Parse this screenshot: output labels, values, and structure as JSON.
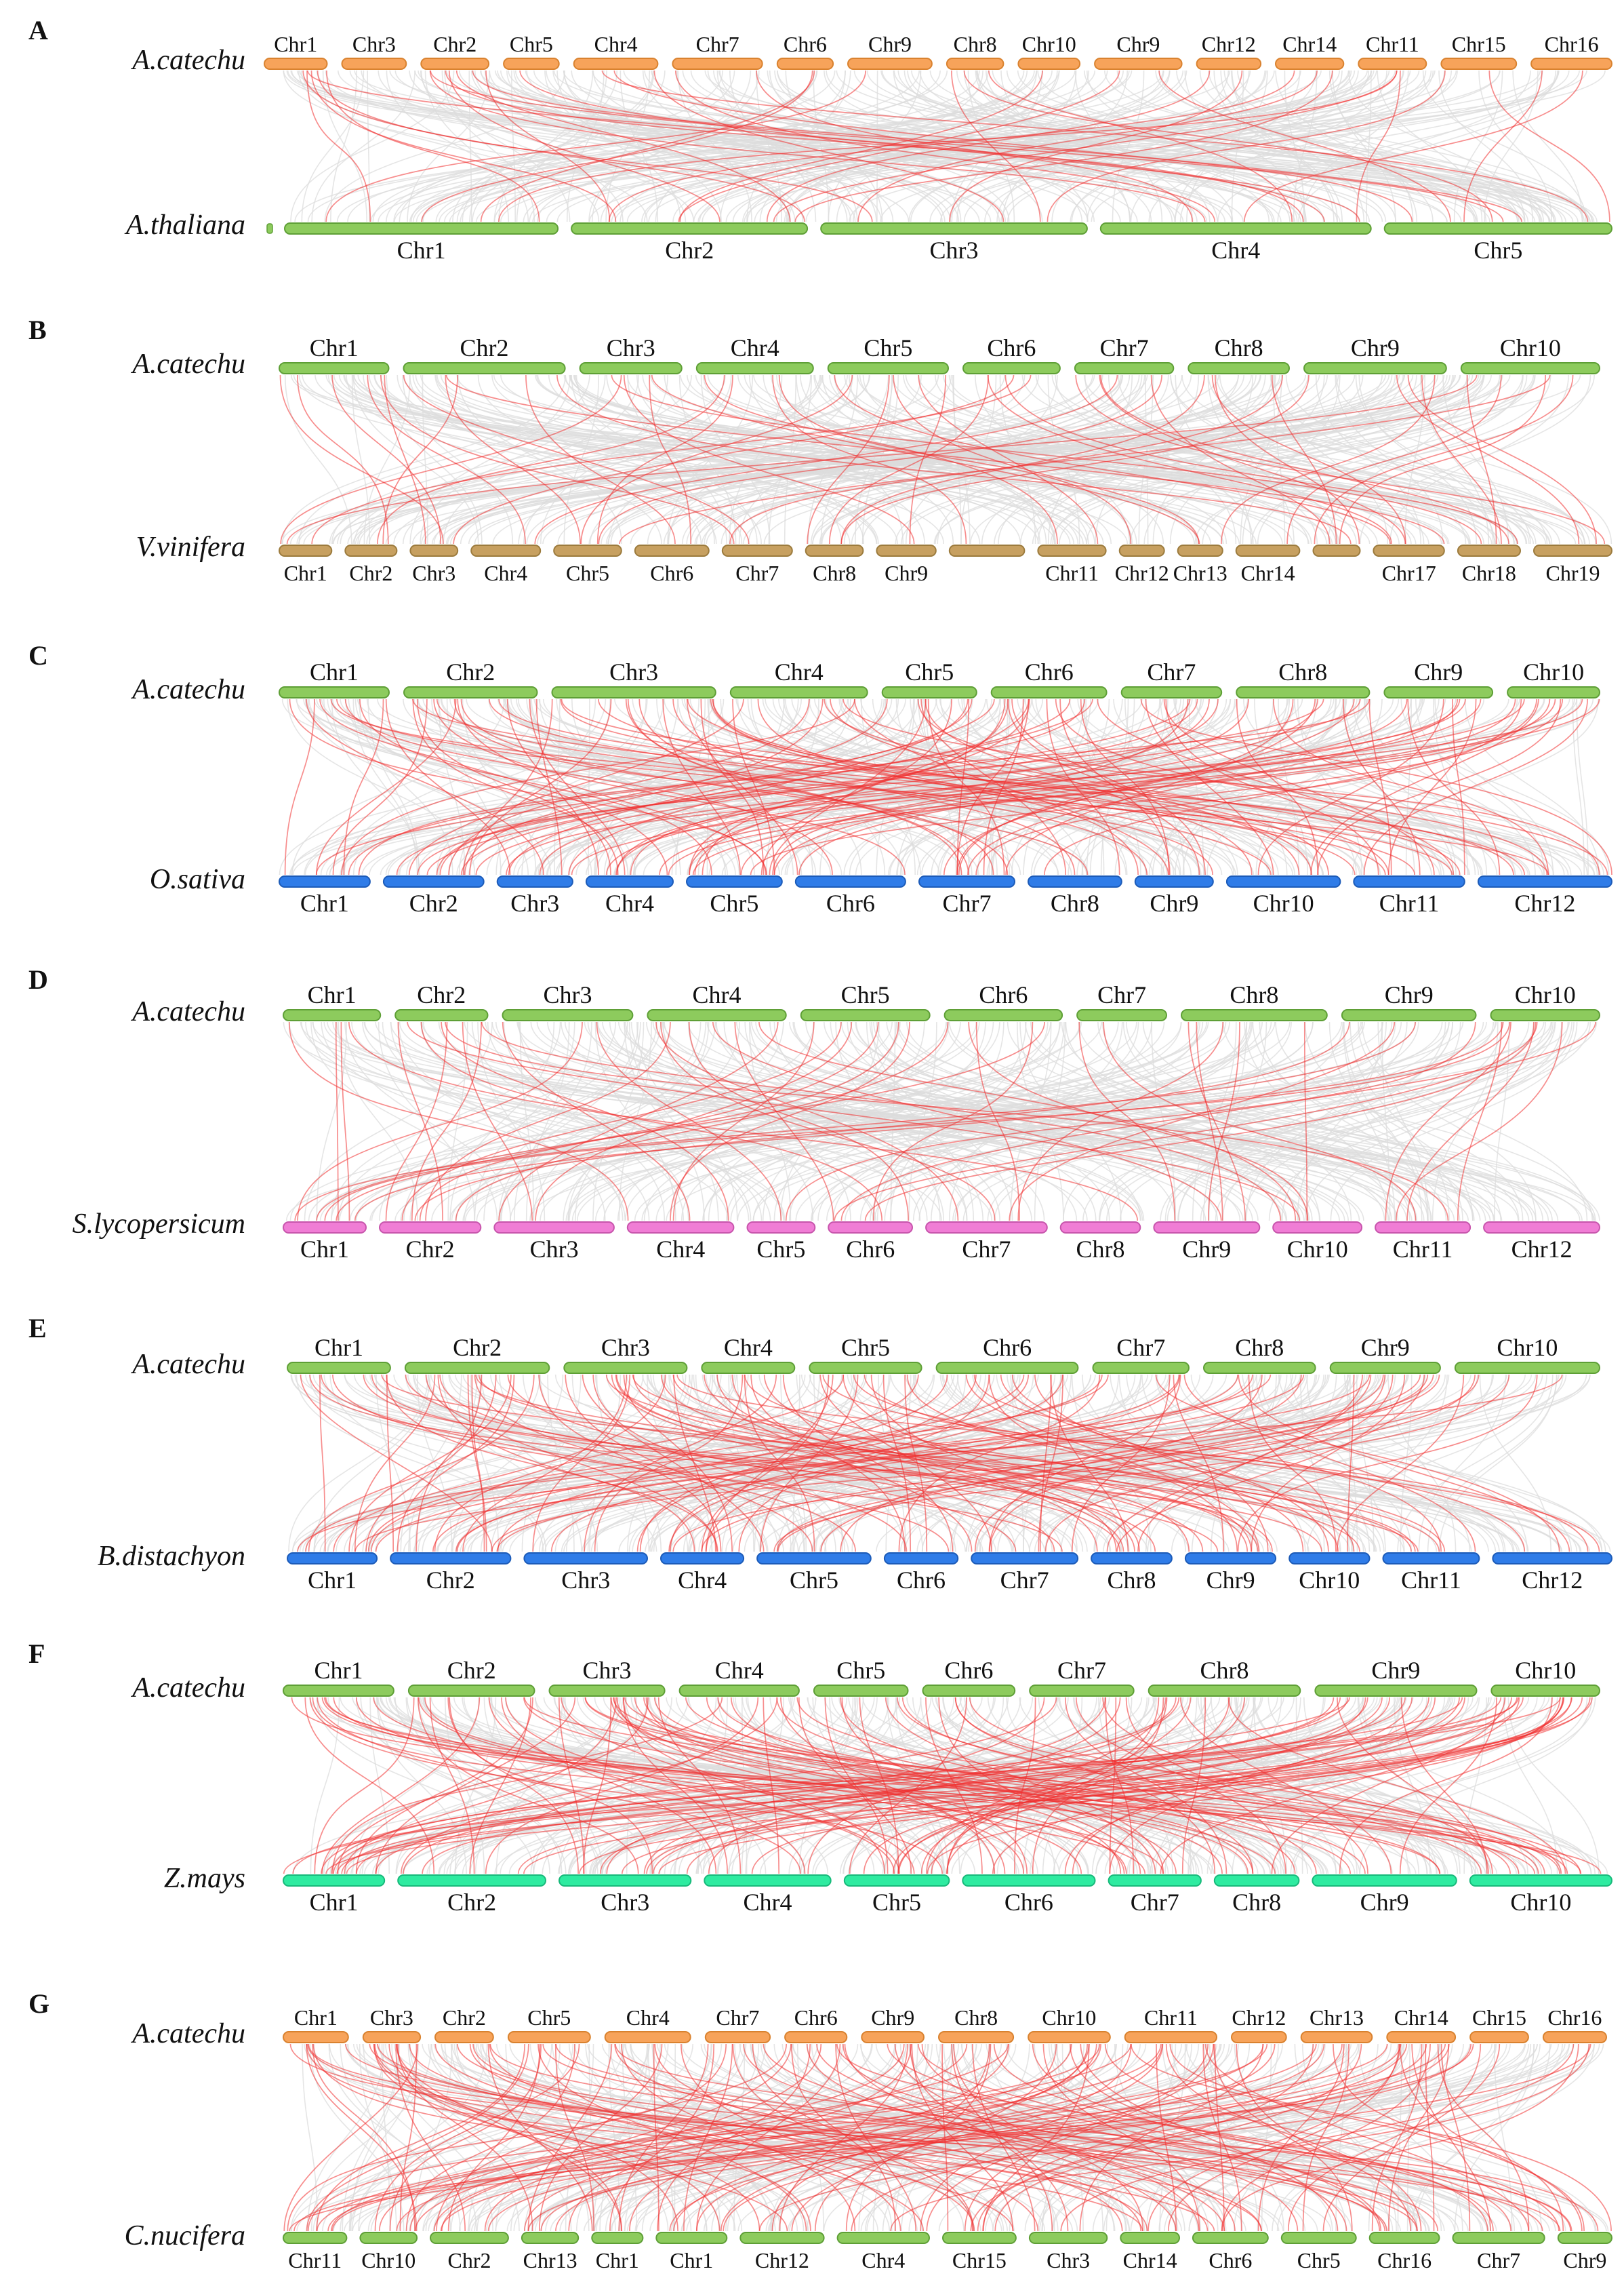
{
  "colors": {
    "orange": "#F7A35A",
    "orange_stroke": "#D9822F",
    "green": "#8DCB5D",
    "green_stroke": "#5E9F36",
    "tan": "#C7A060",
    "tan_stroke": "#9C7B3D",
    "blue": "#2F7CE8",
    "blue_stroke": "#1C5BB8",
    "pink": "#F07DD5",
    "pink_stroke": "#C755AC",
    "teal": "#2EEBA0",
    "teal_stroke": "#17B97A",
    "background_link": "#DCDCDC",
    "syntenic_link": "#F03030"
  },
  "panels": [
    {
      "letter": "A",
      "top_species": "A.catechu",
      "bottom_species": "A.thaliana",
      "top_color": "orange",
      "bottom_color": "green",
      "top_chr": [
        "Chr1",
        "Chr3",
        "Chr2",
        "Chr5",
        "Chr4",
        "Chr7",
        "Chr6",
        "Chr9",
        "Chr8",
        "Chr10",
        "Chr9",
        "Chr12",
        "Chr14",
        "Chr11",
        "Chr15",
        "Chr16"
      ],
      "bottom_chr": [
        "Chr1",
        "Chr2",
        "Chr3",
        "Chr4",
        "Chr5"
      ],
      "link_density": 40
    },
    {
      "letter": "B",
      "top_species": "A.catechu",
      "bottom_species": "V.vinifera",
      "top_color": "green",
      "bottom_color": "tan",
      "top_chr": [
        "Chr1",
        "Chr2",
        "Chr3",
        "Chr4",
        "Chr5",
        "Chr6",
        "Chr7",
        "Chr8",
        "Chr9",
        "Chr10"
      ],
      "bottom_chr": [
        "Chr1",
        "Chr2",
        "Chr3",
        "Chr4",
        "Chr5",
        "Chr6",
        "Chr7",
        "Chr8",
        "Chr9",
        "",
        "Chr11",
        "Chr12",
        "Chr13",
        "Chr14",
        "",
        "Chr17",
        "Chr18",
        "Chr19"
      ],
      "link_density": 55
    },
    {
      "letter": "C",
      "top_species": "A.catechu",
      "bottom_species": "O.sativa",
      "top_color": "green",
      "bottom_color": "blue",
      "top_chr": [
        "Chr1",
        "Chr2",
        "Chr3",
        "Chr4",
        "Chr5",
        "Chr6",
        "Chr7",
        "Chr8",
        "Chr9",
        "Chr10"
      ],
      "bottom_chr": [
        "Chr1",
        "Chr2",
        "Chr3",
        "Chr4",
        "Chr5",
        "Chr6",
        "Chr7",
        "Chr8",
        "Chr9",
        "Chr10",
        "Chr11",
        "Chr12"
      ],
      "link_density": 120
    },
    {
      "letter": "D",
      "top_species": "A.catechu",
      "bottom_species": "S.lycopersicum",
      "top_color": "green",
      "bottom_color": "pink",
      "top_chr": [
        "Chr1",
        "Chr2",
        "Chr3",
        "Chr4",
        "Chr5",
        "Chr6",
        "Chr7",
        "Chr8",
        "Chr9",
        "Chr10"
      ],
      "bottom_chr": [
        "Chr1",
        "Chr2",
        "Chr3",
        "Chr4",
        "Chr5",
        "Chr6",
        "Chr7",
        "Chr8",
        "Chr9",
        "Chr10",
        "Chr11",
        "Chr12"
      ],
      "link_density": 55
    },
    {
      "letter": "E",
      "top_species": "A.catechu",
      "bottom_species": "B.distachyon",
      "top_color": "green",
      "bottom_color": "blue",
      "top_chr": [
        "Chr1",
        "Chr2",
        "Chr3",
        "Chr4",
        "Chr5",
        "Chr6",
        "Chr7",
        "Chr8",
        "Chr9",
        "Chr10"
      ],
      "bottom_chr": [
        "Chr1",
        "Chr2",
        "Chr3",
        "Chr4",
        "Chr5",
        "Chr6",
        "Chr7",
        "Chr8",
        "Chr9",
        "Chr10",
        "Chr11",
        "Chr12"
      ],
      "link_density": 120
    },
    {
      "letter": "F",
      "top_species": "A.catechu",
      "bottom_species": "Z.mays",
      "top_color": "green",
      "bottom_color": "teal",
      "top_chr": [
        "Chr1",
        "Chr2",
        "Chr3",
        "Chr4",
        "Chr5",
        "Chr6",
        "Chr7",
        "Chr8",
        "Chr9",
        "Chr10"
      ],
      "bottom_chr": [
        "Chr1",
        "Chr2",
        "Chr3",
        "Chr4",
        "Chr5",
        "Chr6",
        "Chr7",
        "Chr8",
        "Chr9",
        "Chr10"
      ],
      "link_density": 130
    },
    {
      "letter": "G",
      "top_species": "A.catechu",
      "bottom_species": "C.nucifera",
      "top_color": "orange",
      "bottom_color": "green",
      "top_chr": [
        "Chr1",
        "Chr3",
        "Chr2",
        "Chr5",
        "Chr4",
        "Chr7",
        "Chr6",
        "Chr9",
        "Chr8",
        "Chr10",
        "Chr11",
        "Chr12",
        "Chr13",
        "Chr14",
        "Chr15",
        "Chr16"
      ],
      "bottom_chr": [
        "Chr11",
        "Chr10",
        "Chr2",
        "Chr13",
        "Chr1",
        "Chr1",
        "Chr12",
        "Chr4",
        "Chr15",
        "Chr3",
        "Chr14",
        "Chr6",
        "Chr5",
        "Chr16",
        "Chr7",
        "Chr9"
      ],
      "link_density": 150
    }
  ]
}
